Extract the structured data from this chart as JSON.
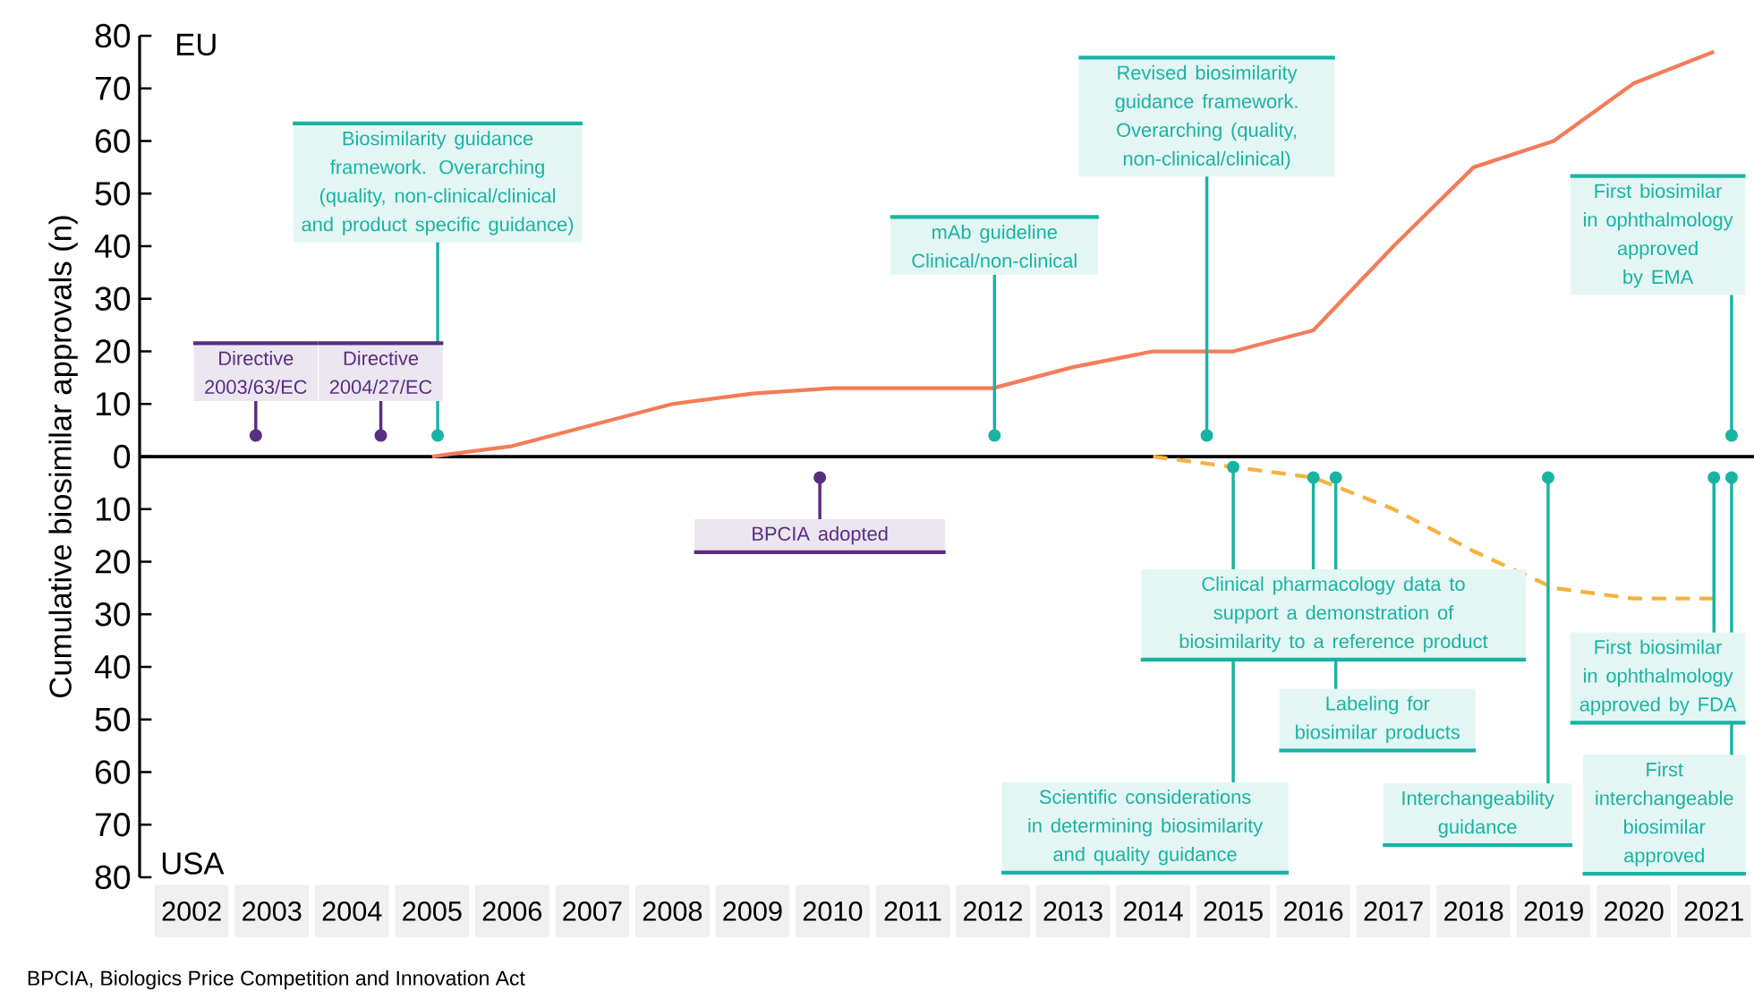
{
  "chart_data": {
    "type": "line",
    "ylabel": "Cumulative biosimilar approvals (n)",
    "categories": [
      "2002",
      "2003",
      "2004",
      "2005",
      "2006",
      "2007",
      "2008",
      "2009",
      "2010",
      "2011",
      "2012",
      "2013",
      "2014",
      "2015",
      "2016",
      "2017",
      "2018",
      "2019",
      "2020",
      "2021"
    ],
    "series": [
      {
        "color": "#f47c5a",
        "line_style": "solid",
        "values": [
          null,
          null,
          null,
          0,
          2,
          6,
          10,
          12,
          13,
          13,
          13,
          17,
          20,
          20,
          24,
          40,
          55,
          60,
          71,
          77
        ]
      },
      {
        "color": "#f5b23e",
        "line_style": "dashed",
        "values": [
          null,
          null,
          null,
          null,
          null,
          null,
          null,
          null,
          null,
          null,
          null,
          null,
          0,
          -2,
          -4,
          -10,
          -18,
          -25,
          -27,
          -27
        ]
      }
    ],
    "ylim": [
      -80,
      80
    ],
    "yticks": [
      {
        "value": -80,
        "label": "80"
      },
      {
        "value": -70,
        "label": "70"
      },
      {
        "value": -60,
        "label": "60"
      },
      {
        "value": -50,
        "label": "50"
      },
      {
        "value": -40,
        "label": "40"
      },
      {
        "value": -30,
        "label": "30"
      },
      {
        "value": -20,
        "label": "20"
      },
      {
        "value": -10,
        "label": "10"
      },
      0,
      10,
      20,
      30,
      40,
      50,
      60,
      70,
      80
    ],
    "annotations": [
      "Directive 2003/63/EC",
      "Directive 2004/27/EC",
      "Biosimilarity guidance framework. Overarching (quality, non-clinical/clinical and product specific guidance)",
      "mAb guideline Clinical/non-clinical",
      "Revised biosimilarity guidance framework. Overarching (quality, non-clinical/clinical)",
      "First biosimilar in ophthalmology approved by EMA",
      "BPCIA adopted",
      {
        "text": "Scientific considerations in determining biosimilarity and quality guidance",
        "x": "2015",
        "y": -2
      },
      {
        "text": "Clinical pharmacology data to support a demonstration of biosimilarity to a reference product",
        "x": "2016",
        "y": -4
      },
      "Labeling for biosimilar products",
      "Interchangeability guidance",
      "First biosimilar in ophthalmology approved by FDA",
      "First interchangeable biosimilar approved",
      "EU",
      "USA",
      "BPCIA, Biologics Price Competition and Innovation Act"
    ]
  }
}
